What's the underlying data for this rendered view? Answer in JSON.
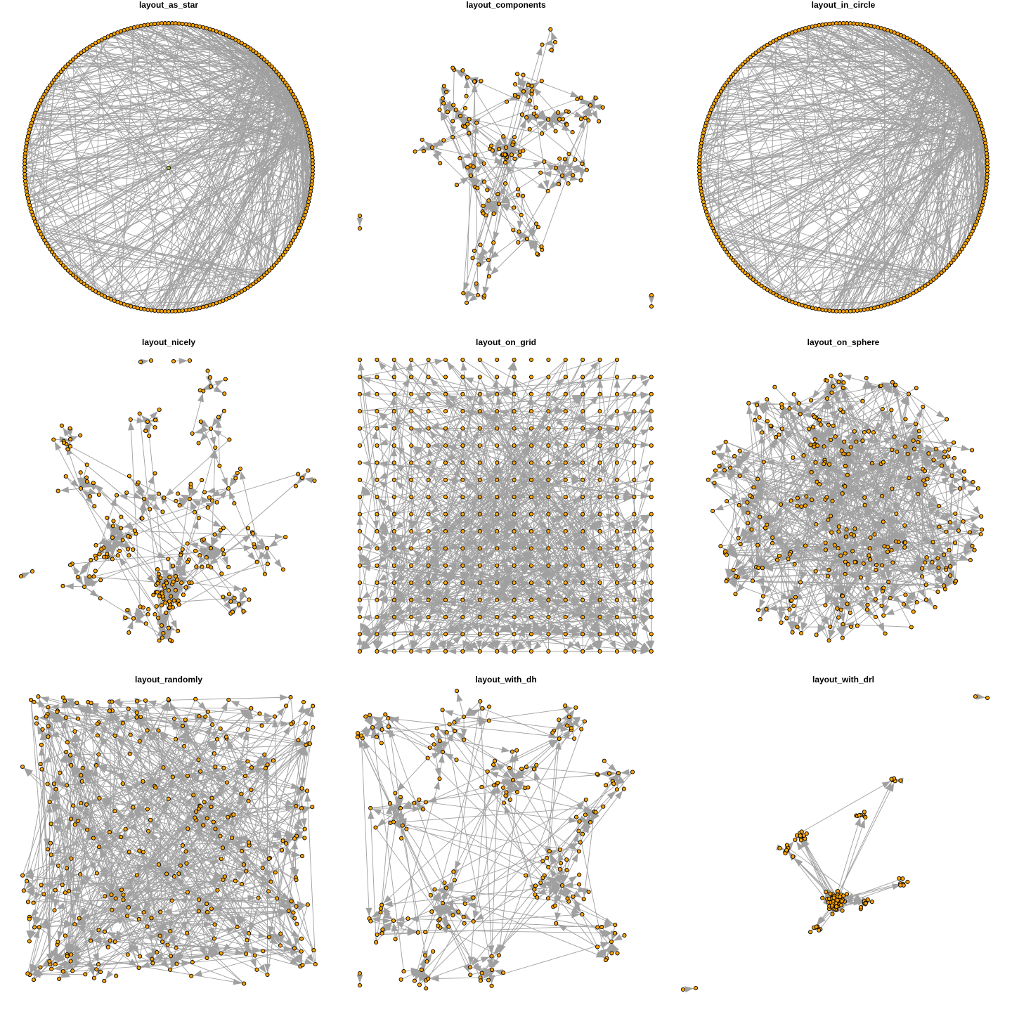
{
  "figure": {
    "panels": [
      {
        "key": "star",
        "title": "layout_as_star"
      },
      {
        "key": "components",
        "title": "layout_components"
      },
      {
        "key": "circle",
        "title": "layout_in_circle"
      },
      {
        "key": "nicely",
        "title": "layout_nicely"
      },
      {
        "key": "grid",
        "title": "layout_on_grid"
      },
      {
        "key": "sphere",
        "title": "layout_on_sphere"
      },
      {
        "key": "randomly",
        "title": "layout_randomly"
      },
      {
        "key": "dh",
        "title": "layout_with_dh"
      },
      {
        "key": "drl",
        "title": "layout_with_drl"
      }
    ]
  },
  "colors": {
    "vertex_fill": "#FFA500",
    "vertex_stroke": "#000000",
    "edge": "#A0A0A0",
    "arrow": "#A0A0A0",
    "center_vertex_fill": "#9ACD32",
    "background": "#FFFFFF"
  }
}
